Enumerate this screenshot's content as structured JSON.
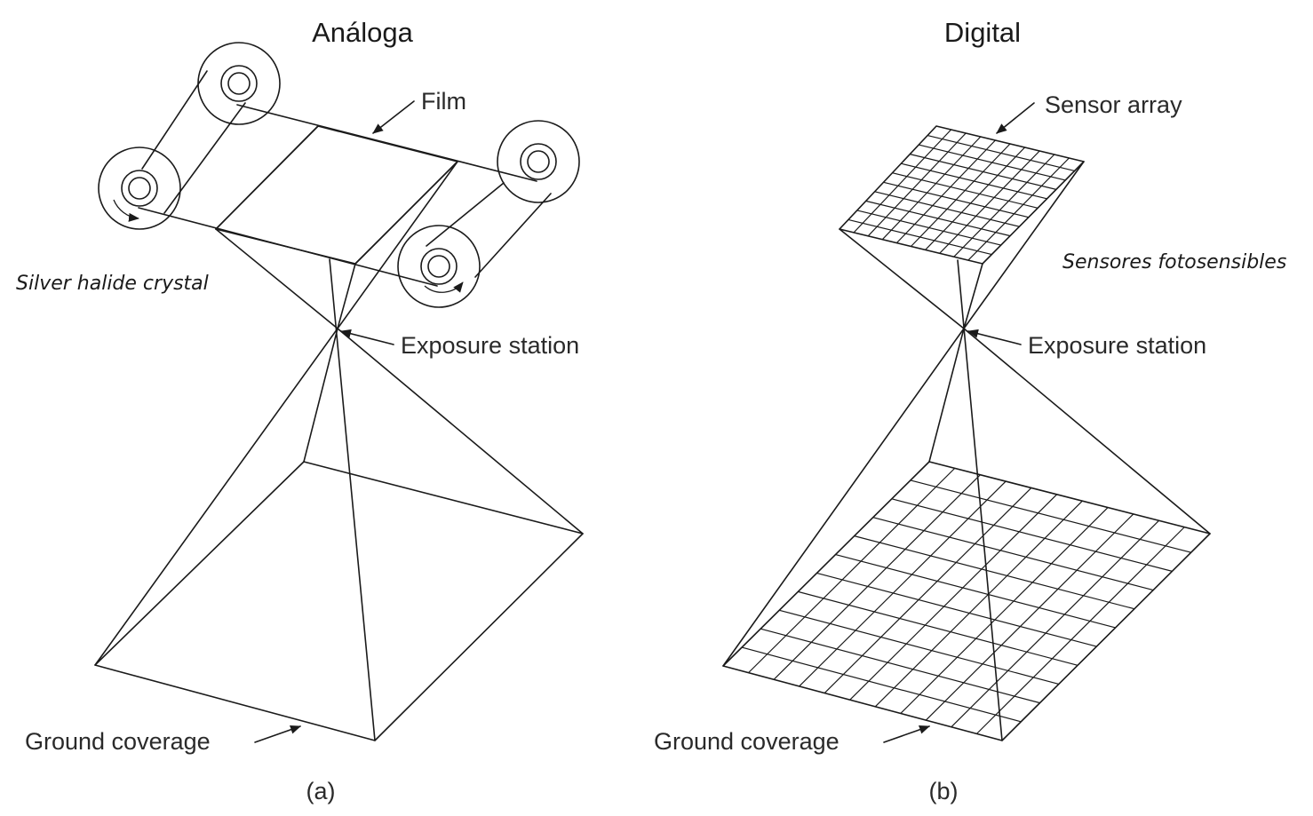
{
  "panel_a": {
    "title": "Análoga",
    "film_label": "Film",
    "crystal_label": "Silver halide crystal",
    "exposure_label": "Exposure station",
    "ground_label": "Ground coverage",
    "caption": "(a)"
  },
  "panel_b": {
    "title": "Digital",
    "sensor_label": "Sensor array",
    "photosensors_label": "Sensores fotosensibles",
    "exposure_label": "Exposure station",
    "ground_label": "Ground coverage",
    "caption": "(b)"
  }
}
